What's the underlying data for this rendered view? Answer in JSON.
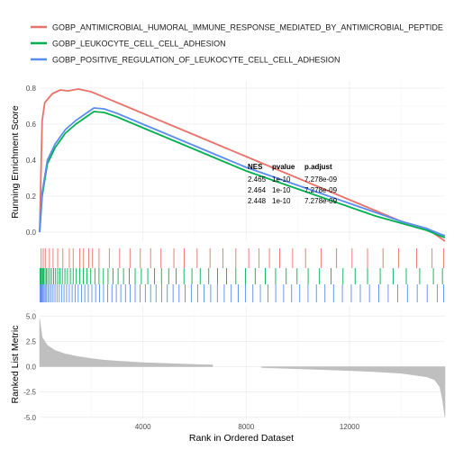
{
  "chart_data": {
    "type": "line",
    "xlabel": "Rank in Ordered Dataset",
    "xlim": [
      1,
      15700
    ],
    "xticks": [
      4000,
      8000,
      12000
    ],
    "series": [
      {
        "name": "GOBP_ANTIMICROBIAL_HUMORAL_IMMUNE_RESPONSE_MEDIATED_BY_ANTIMICROBIAL_PEPTIDE",
        "color": "#e8736b",
        "x": [
          1,
          100,
          200,
          500,
          800,
          1100,
          1500,
          2000,
          3000,
          4000,
          5000,
          6000,
          7000,
          8000,
          9000,
          10000,
          11000,
          12000,
          13000,
          14000,
          15000,
          15500,
          15700
        ],
        "y": [
          0,
          0.62,
          0.72,
          0.77,
          0.79,
          0.785,
          0.795,
          0.78,
          0.72,
          0.66,
          0.6,
          0.54,
          0.48,
          0.42,
          0.36,
          0.3,
          0.24,
          0.18,
          0.12,
          0.06,
          0.02,
          -0.03,
          -0.05
        ]
      },
      {
        "name": "GOBP_LEUKOCYTE_CELL_CELL_ADHESION",
        "color": "#00b050",
        "x": [
          1,
          100,
          300,
          600,
          1000,
          1400,
          1800,
          2100,
          2500,
          3000,
          4000,
          5000,
          6000,
          7000,
          8000,
          9000,
          10000,
          11000,
          12000,
          13000,
          14000,
          15000,
          15500,
          15700
        ],
        "y": [
          0,
          0.2,
          0.38,
          0.47,
          0.55,
          0.6,
          0.64,
          0.67,
          0.665,
          0.64,
          0.58,
          0.52,
          0.46,
          0.4,
          0.34,
          0.29,
          0.24,
          0.19,
          0.14,
          0.09,
          0.05,
          0.01,
          -0.02,
          -0.03
        ]
      },
      {
        "name": "GOBP_POSITIVE_REGULATION_OF_LEUKOCYTE_CELL_CELL_ADHESION",
        "color": "#5b8def",
        "x": [
          1,
          100,
          300,
          600,
          1000,
          1400,
          1800,
          2100,
          2500,
          3000,
          4000,
          5000,
          6000,
          7000,
          8000,
          9000,
          10000,
          11000,
          12000,
          13000,
          14000,
          15000,
          15500,
          15700
        ],
        "y": [
          0,
          0.22,
          0.4,
          0.49,
          0.57,
          0.62,
          0.66,
          0.69,
          0.685,
          0.66,
          0.6,
          0.54,
          0.48,
          0.42,
          0.36,
          0.31,
          0.26,
          0.21,
          0.16,
          0.11,
          0.06,
          0.02,
          -0.01,
          -0.02
        ]
      }
    ],
    "panels": [
      {
        "name": "running-enrichment",
        "ylabel": "Running Enrichment Score",
        "ylim": [
          -0.05,
          0.84
        ],
        "yticks": [
          "0.0",
          "0.2",
          "0.4",
          "0.6",
          "0.8"
        ],
        "grid": true
      },
      {
        "name": "ranked-list",
        "ylabel": "Ranked List Metric",
        "ylim": [
          -5.2,
          6
        ],
        "yticks": [
          "-5.0",
          "-2.5",
          "0.0",
          "2.5",
          "5.0"
        ],
        "grid": true,
        "metric_profile": {
          "x": [
            0,
            100,
            300,
            600,
            1000,
            1500,
            2000,
            2500,
            3000,
            4000,
            5000,
            6000,
            6700,
            8600,
            10000,
            12000,
            13000,
            14000,
            15000,
            15300,
            15500,
            15600,
            15700
          ],
          "y": [
            4.7,
            2.9,
            2.1,
            1.6,
            1.25,
            1.0,
            0.8,
            0.65,
            0.55,
            0.4,
            0.3,
            0.22,
            0.18,
            -0.08,
            -0.2,
            -0.38,
            -0.5,
            -0.65,
            -1.0,
            -1.3,
            -2.0,
            -3.2,
            -5.0
          ]
        },
        "gap": [
          6800,
          8600
        ]
      }
    ],
    "rug": {
      "series_hits": [
        [
          60,
          140,
          220,
          380,
          520,
          700,
          900,
          1150,
          1300,
          1550,
          1700,
          1900,
          2050,
          2300,
          2700,
          3100,
          3500,
          3900,
          4300,
          4700,
          5200,
          5600,
          6100,
          6600,
          7100,
          7600,
          8100,
          8500,
          8900,
          9300,
          9800,
          10300,
          10900,
          11500,
          12100,
          12700,
          13300,
          13900,
          14600,
          15200,
          15650
        ],
        [
          20,
          50,
          80,
          120,
          160,
          210,
          260,
          320,
          390,
          460,
          540,
          620,
          700,
          790,
          880,
          980,
          1080,
          1190,
          1300,
          1420,
          1550,
          1690,
          1830,
          1980,
          2140,
          2300,
          2470,
          2650,
          2840,
          3040,
          3250,
          3470,
          3700,
          3940,
          4190,
          4450,
          4720,
          5000,
          5290,
          5590,
          5900,
          6220,
          6550,
          6890,
          7240,
          7600,
          7970,
          8350,
          8740,
          9140,
          9550,
          9970,
          10400,
          10840,
          11290,
          11750,
          12220,
          12700,
          13190,
          13690,
          14200,
          14720,
          15250,
          15600
        ],
        [
          15,
          40,
          70,
          100,
          135,
          175,
          220,
          270,
          325,
          385,
          450,
          520,
          595,
          675,
          760,
          850,
          945,
          1045,
          1150,
          1260,
          1375,
          1495,
          1620,
          1750,
          1885,
          2025,
          2170,
          2320,
          2475,
          2635,
          2800,
          2970,
          3145,
          3325,
          3510,
          3700,
          3895,
          4095,
          4300,
          4510,
          4725,
          4945,
          5170,
          5400,
          5635,
          5875,
          6120,
          6370,
          6625,
          6885,
          7150,
          7420,
          7695,
          7975,
          8260,
          8550,
          8845,
          9145,
          9450,
          9760,
          10075,
          10395,
          10720,
          11050,
          11385,
          11725,
          12070,
          12420,
          12775,
          13135,
          13500,
          13870,
          14245,
          14625,
          15010,
          15400,
          15650
        ]
      ]
    },
    "nes_table": {
      "headers": [
        "NES",
        "pvalue",
        "p.adjust"
      ],
      "rows": [
        [
          "2.465",
          "1e-10",
          "7.278e-09"
        ],
        [
          "2.464",
          "1e-10",
          "7.278e-09"
        ],
        [
          "2.448",
          "1e-10",
          "7.278e-09"
        ]
      ]
    }
  }
}
